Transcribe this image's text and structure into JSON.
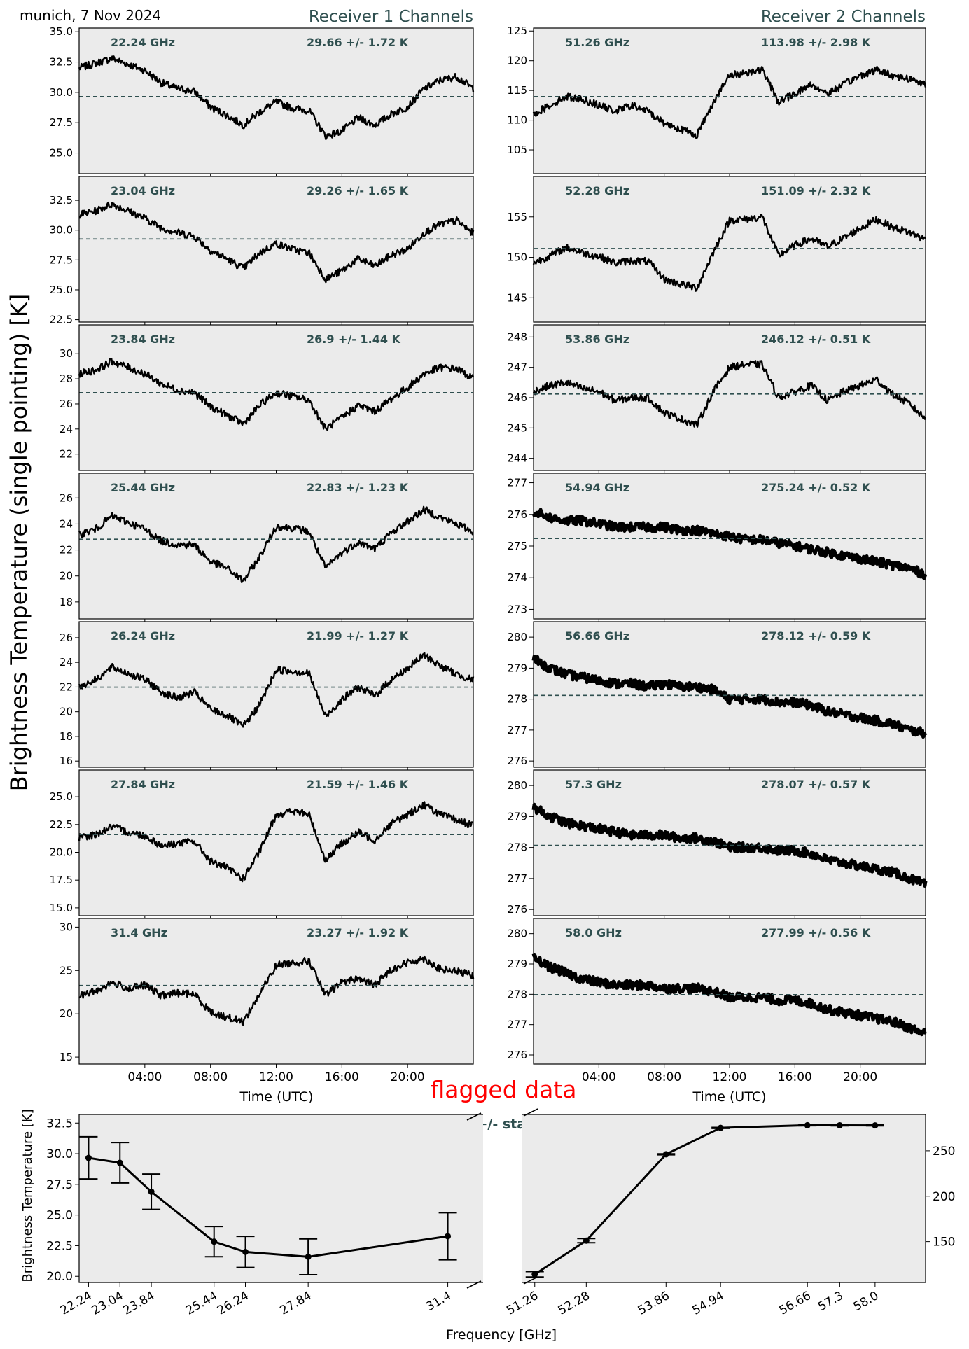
{
  "header": {
    "location_date": "munich, 7 Nov 2024",
    "receiver1_title": "Receiver 1 Channels",
    "receiver2_title": "Receiver 2 Channels"
  },
  "colors": {
    "panel_bg": "#ebebeb",
    "trace": "#000000",
    "mean_line": "#2f4f4f",
    "annotation": "#2f4f4f",
    "flag": "#ff0000"
  },
  "ylabel_main": "Brightness Temperature (single pointing) [K]",
  "xlabel_time": "Time (UTC)",
  "flag_label": "flagged data",
  "chart_data": [
    {
      "type": "line",
      "title": "Receiver 1 Channels",
      "xlabel": "Time (UTC)",
      "ylabel": "Brightness Temperature (single pointing) [K]",
      "x_tick_labels": [
        "04:00",
        "08:00",
        "12:00",
        "16:00",
        "20:00"
      ],
      "x_ticks_hours": [
        4,
        8,
        12,
        16,
        20
      ],
      "xlim_hours": [
        0,
        24
      ],
      "x_hours": [
        0,
        1,
        2,
        3,
        4,
        5,
        6,
        7,
        8,
        9,
        10,
        11,
        12,
        13,
        14,
        15,
        16,
        17,
        18,
        19,
        20,
        21,
        22,
        23,
        24
      ],
      "series": [
        {
          "name": "22.24 GHz",
          "stat": "29.66 +/- 1.72 K",
          "mean": 29.66,
          "ylim": [
            23.3,
            35.3
          ],
          "y_ticks": [
            25.0,
            27.5,
            30.0,
            32.5,
            35.0
          ],
          "y_tick_labels": [
            "25.0",
            "27.5",
            "30.0",
            "32.5",
            "35.0"
          ],
          "values": [
            32.0,
            32.4,
            32.8,
            32.3,
            31.8,
            30.8,
            30.3,
            30.1,
            28.8,
            28.1,
            27.3,
            28.4,
            29.2,
            28.7,
            28.5,
            26.4,
            26.8,
            27.9,
            27.3,
            28.2,
            28.8,
            30.3,
            31.0,
            31.3,
            30.3
          ]
        },
        {
          "name": "23.04 GHz",
          "stat": "29.26 +/- 1.65 K",
          "mean": 29.26,
          "ylim": [
            22.3,
            34.5
          ],
          "y_ticks": [
            22.5,
            25.0,
            27.5,
            30.0,
            32.5
          ],
          "y_tick_labels": [
            "22.5",
            "25.0",
            "27.5",
            "30.0",
            "32.5"
          ],
          "values": [
            31.3,
            31.6,
            32.2,
            31.6,
            31.0,
            30.2,
            29.8,
            29.5,
            28.3,
            27.6,
            26.8,
            28.1,
            28.9,
            28.4,
            28.1,
            25.9,
            26.6,
            27.6,
            27.0,
            27.9,
            28.4,
            29.8,
            30.5,
            30.8,
            29.7
          ]
        },
        {
          "name": "23.84 GHz",
          "stat": "26.9 +/- 1.44 K",
          "mean": 26.9,
          "ylim": [
            20.7,
            32.3
          ],
          "y_ticks": [
            22,
            24,
            26,
            28,
            30
          ],
          "y_tick_labels": [
            "22",
            "24",
            "26",
            "28",
            "30"
          ],
          "values": [
            28.4,
            28.7,
            29.4,
            28.9,
            28.4,
            27.6,
            27.1,
            26.9,
            25.8,
            25.1,
            24.4,
            25.9,
            26.9,
            26.6,
            26.3,
            24.0,
            24.9,
            25.9,
            25.4,
            26.4,
            27.3,
            28.4,
            28.9,
            28.8,
            28.0
          ]
        },
        {
          "name": "25.44 GHz",
          "stat": "22.83 +/- 1.23 K",
          "mean": 22.83,
          "ylim": [
            16.7,
            27.9
          ],
          "y_ticks": [
            18,
            20,
            22,
            24,
            26
          ],
          "y_tick_labels": [
            "18",
            "20",
            "22",
            "24",
            "26"
          ],
          "values": [
            23.2,
            23.6,
            24.6,
            24.1,
            23.6,
            22.7,
            22.4,
            22.4,
            21.1,
            20.6,
            19.6,
            21.5,
            23.8,
            23.7,
            23.4,
            20.6,
            21.8,
            22.6,
            22.1,
            23.3,
            24.2,
            25.1,
            24.5,
            24.0,
            23.4
          ]
        },
        {
          "name": "26.24 GHz",
          "stat": "21.99 +/- 1.27 K",
          "mean": 21.99,
          "ylim": [
            15.5,
            27.3
          ],
          "y_ticks": [
            16,
            18,
            20,
            22,
            24,
            26
          ],
          "y_tick_labels": [
            "16",
            "18",
            "20",
            "22",
            "24",
            "26"
          ],
          "values": [
            22.0,
            22.6,
            23.6,
            23.1,
            22.6,
            21.6,
            21.1,
            21.6,
            20.2,
            19.7,
            18.8,
            20.6,
            23.4,
            23.3,
            23.1,
            19.6,
            21.0,
            22.0,
            21.3,
            22.6,
            23.5,
            24.6,
            23.7,
            23.0,
            22.6
          ]
        },
        {
          "name": "27.84 GHz",
          "stat": "21.59 +/- 1.46 K",
          "mean": 21.59,
          "ylim": [
            14.3,
            27.4
          ],
          "y_ticks": [
            15.0,
            17.5,
            20.0,
            22.5,
            25.0
          ],
          "y_tick_labels": [
            "15.0",
            "17.5",
            "20.0",
            "22.5",
            "25.0"
          ],
          "values": [
            21.3,
            21.6,
            22.3,
            21.8,
            21.5,
            20.6,
            20.8,
            21.0,
            19.2,
            18.6,
            17.6,
            20.1,
            23.4,
            23.7,
            23.4,
            19.3,
            20.8,
            21.8,
            21.1,
            22.6,
            23.4,
            24.3,
            23.4,
            22.9,
            22.4
          ]
        },
        {
          "name": "31.4 GHz",
          "stat": "23.27 +/- 1.92 K",
          "mean": 23.27,
          "ylim": [
            14.2,
            31.0
          ],
          "y_ticks": [
            15,
            20,
            25,
            30
          ],
          "y_tick_labels": [
            "15",
            "20",
            "25",
            "30"
          ],
          "values": [
            22.1,
            22.6,
            23.6,
            22.9,
            23.3,
            22.1,
            22.4,
            22.3,
            20.2,
            19.6,
            19.1,
            22.3,
            25.6,
            25.9,
            26.1,
            22.1,
            23.7,
            24.1,
            23.3,
            25.1,
            25.9,
            26.4,
            25.1,
            24.9,
            24.4
          ]
        }
      ]
    },
    {
      "type": "line",
      "title": "Receiver 2 Channels",
      "xlabel": "Time (UTC)",
      "x_tick_labels": [
        "04:00",
        "08:00",
        "12:00",
        "16:00",
        "20:00"
      ],
      "x_ticks_hours": [
        4,
        8,
        12,
        16,
        20
      ],
      "xlim_hours": [
        0,
        24
      ],
      "x_hours": [
        0,
        1,
        2,
        3,
        4,
        5,
        6,
        7,
        8,
        9,
        10,
        11,
        12,
        13,
        14,
        15,
        16,
        17,
        18,
        19,
        20,
        21,
        22,
        23,
        24
      ],
      "series": [
        {
          "name": "51.26 GHz",
          "stat": "113.98 +/- 2.98 K",
          "mean": 113.98,
          "ylim": [
            101.0,
            125.5
          ],
          "y_ticks": [
            105,
            110,
            115,
            120,
            125
          ],
          "y_tick_labels": [
            "105",
            "110",
            "115",
            "120",
            "125"
          ],
          "values": [
            111.0,
            112.5,
            114.0,
            113.5,
            112.5,
            111.5,
            112.5,
            111.5,
            109.5,
            108.5,
            107.5,
            113.0,
            117.5,
            118.0,
            118.5,
            113.0,
            114.5,
            116.0,
            114.5,
            116.0,
            117.5,
            118.5,
            117.5,
            117.0,
            116.0
          ]
        },
        {
          "name": "52.28 GHz",
          "stat": "151.09 +/- 2.32 K",
          "mean": 151.09,
          "ylim": [
            142.0,
            160.0
          ],
          "y_ticks": [
            145,
            150,
            155
          ],
          "y_tick_labels": [
            "145",
            "150",
            "155"
          ],
          "values": [
            149.3,
            150.2,
            151.2,
            150.6,
            150.1,
            149.3,
            149.6,
            149.5,
            147.3,
            146.7,
            146.2,
            150.6,
            154.6,
            154.7,
            155.0,
            150.2,
            151.5,
            152.3,
            151.3,
            152.4,
            153.6,
            154.7,
            153.7,
            153.1,
            152.2
          ]
        },
        {
          "name": "53.86 GHz",
          "stat": "246.12 +/- 0.51 K",
          "mean": 246.12,
          "ylim": [
            243.6,
            248.4
          ],
          "y_ticks": [
            244,
            245,
            246,
            247,
            248
          ],
          "y_tick_labels": [
            "244",
            "245",
            "246",
            "247",
            "248"
          ],
          "values": [
            246.2,
            246.4,
            246.5,
            246.3,
            246.2,
            245.9,
            246.0,
            246.0,
            245.5,
            245.3,
            245.1,
            246.2,
            247.0,
            247.1,
            247.1,
            246.0,
            246.2,
            246.4,
            245.9,
            246.2,
            246.4,
            246.6,
            246.1,
            245.8,
            245.3
          ]
        },
        {
          "name": "54.94 GHz",
          "stat": "275.24 +/- 0.52 K",
          "mean": 275.24,
          "ylim": [
            272.7,
            277.3
          ],
          "y_ticks": [
            273,
            274,
            275,
            276,
            277
          ],
          "y_tick_labels": [
            "273",
            "274",
            "275",
            "276",
            "277"
          ],
          "values": [
            276.1,
            275.9,
            275.8,
            275.8,
            275.7,
            275.6,
            275.6,
            275.6,
            275.6,
            275.5,
            275.5,
            275.4,
            275.3,
            275.2,
            275.2,
            275.1,
            275.0,
            274.9,
            274.8,
            274.7,
            274.6,
            274.5,
            274.4,
            274.3,
            274.1
          ]
        },
        {
          "name": "56.66 GHz",
          "stat": "278.12 +/- 0.59 K",
          "mean": 278.12,
          "ylim": [
            275.8,
            280.5
          ],
          "y_ticks": [
            276,
            277,
            278,
            279,
            280
          ],
          "y_tick_labels": [
            "276",
            "277",
            "278",
            "279",
            "280"
          ],
          "values": [
            279.3,
            279.0,
            278.8,
            278.7,
            278.6,
            278.5,
            278.5,
            278.4,
            278.5,
            278.4,
            278.4,
            278.3,
            278.0,
            278.0,
            278.0,
            277.9,
            277.9,
            277.8,
            277.6,
            277.5,
            277.4,
            277.3,
            277.2,
            277.0,
            276.9
          ]
        },
        {
          "name": "57.3 GHz",
          "stat": "278.07 +/- 0.57 K",
          "mean": 278.07,
          "ylim": [
            275.8,
            280.5
          ],
          "y_ticks": [
            276,
            277,
            278,
            279,
            280
          ],
          "y_tick_labels": [
            "276",
            "277",
            "278",
            "279",
            "280"
          ],
          "values": [
            279.3,
            279.0,
            278.8,
            278.7,
            278.6,
            278.5,
            278.4,
            278.4,
            278.4,
            278.3,
            278.3,
            278.2,
            278.0,
            278.0,
            278.0,
            277.9,
            277.9,
            277.8,
            277.6,
            277.5,
            277.4,
            277.3,
            277.2,
            277.0,
            276.8
          ]
        },
        {
          "name": "58.0 GHz",
          "stat": "277.99 +/- 0.56 K",
          "mean": 277.99,
          "ylim": [
            275.7,
            280.5
          ],
          "y_ticks": [
            276,
            277,
            278,
            279,
            280
          ],
          "y_tick_labels": [
            "276",
            "277",
            "278",
            "279",
            "280"
          ],
          "values": [
            279.2,
            278.9,
            278.7,
            278.5,
            278.4,
            278.3,
            278.3,
            278.3,
            278.2,
            278.2,
            278.2,
            278.1,
            277.9,
            277.9,
            277.9,
            277.8,
            277.8,
            277.7,
            277.5,
            277.4,
            277.3,
            277.2,
            277.1,
            276.9,
            276.7
          ]
        }
      ]
    },
    {
      "type": "line",
      "title": "TB daily means +/- standard deviation",
      "xlabel": "Frequency [GHz]",
      "ylabel": "Brightness Temperature [K]",
      "flag_label": "flagged data",
      "left": {
        "x": [
          22.24,
          23.04,
          23.84,
          25.44,
          26.24,
          27.84,
          31.4
        ],
        "x_tick_labels": [
          "22.24",
          "23.04",
          "23.84",
          "25.44",
          "26.24",
          "27.84",
          "31.4"
        ],
        "mean": [
          29.66,
          29.26,
          26.9,
          22.83,
          21.99,
          21.59,
          23.27
        ],
        "std": [
          1.72,
          1.65,
          1.44,
          1.23,
          1.27,
          1.46,
          1.92
        ],
        "xlim": [
          22.0,
          32.3
        ],
        "ylim": [
          19.5,
          33.2
        ],
        "y_ticks": [
          20.0,
          22.5,
          25.0,
          27.5,
          30.0,
          32.5
        ],
        "y_tick_labels": [
          "20.0",
          "22.5",
          "25.0",
          "27.5",
          "30.0",
          "32.5"
        ]
      },
      "right": {
        "x": [
          51.26,
          52.28,
          53.86,
          54.94,
          56.66,
          57.3,
          58.0
        ],
        "x_tick_labels": [
          "51.26",
          "52.28",
          "53.86",
          "54.94",
          "56.66",
          "57.3",
          "58.0"
        ],
        "mean": [
          113.98,
          151.09,
          246.12,
          275.24,
          278.12,
          278.07,
          277.99
        ],
        "std": [
          2.98,
          2.32,
          0.51,
          0.52,
          0.59,
          0.57,
          0.56
        ],
        "xlim": [
          51.0,
          59.0
        ],
        "ylim": [
          105,
          290
        ],
        "y_ticks": [
          150,
          200,
          250
        ],
        "y_tick_labels": [
          "150",
          "200",
          "250"
        ]
      }
    }
  ]
}
